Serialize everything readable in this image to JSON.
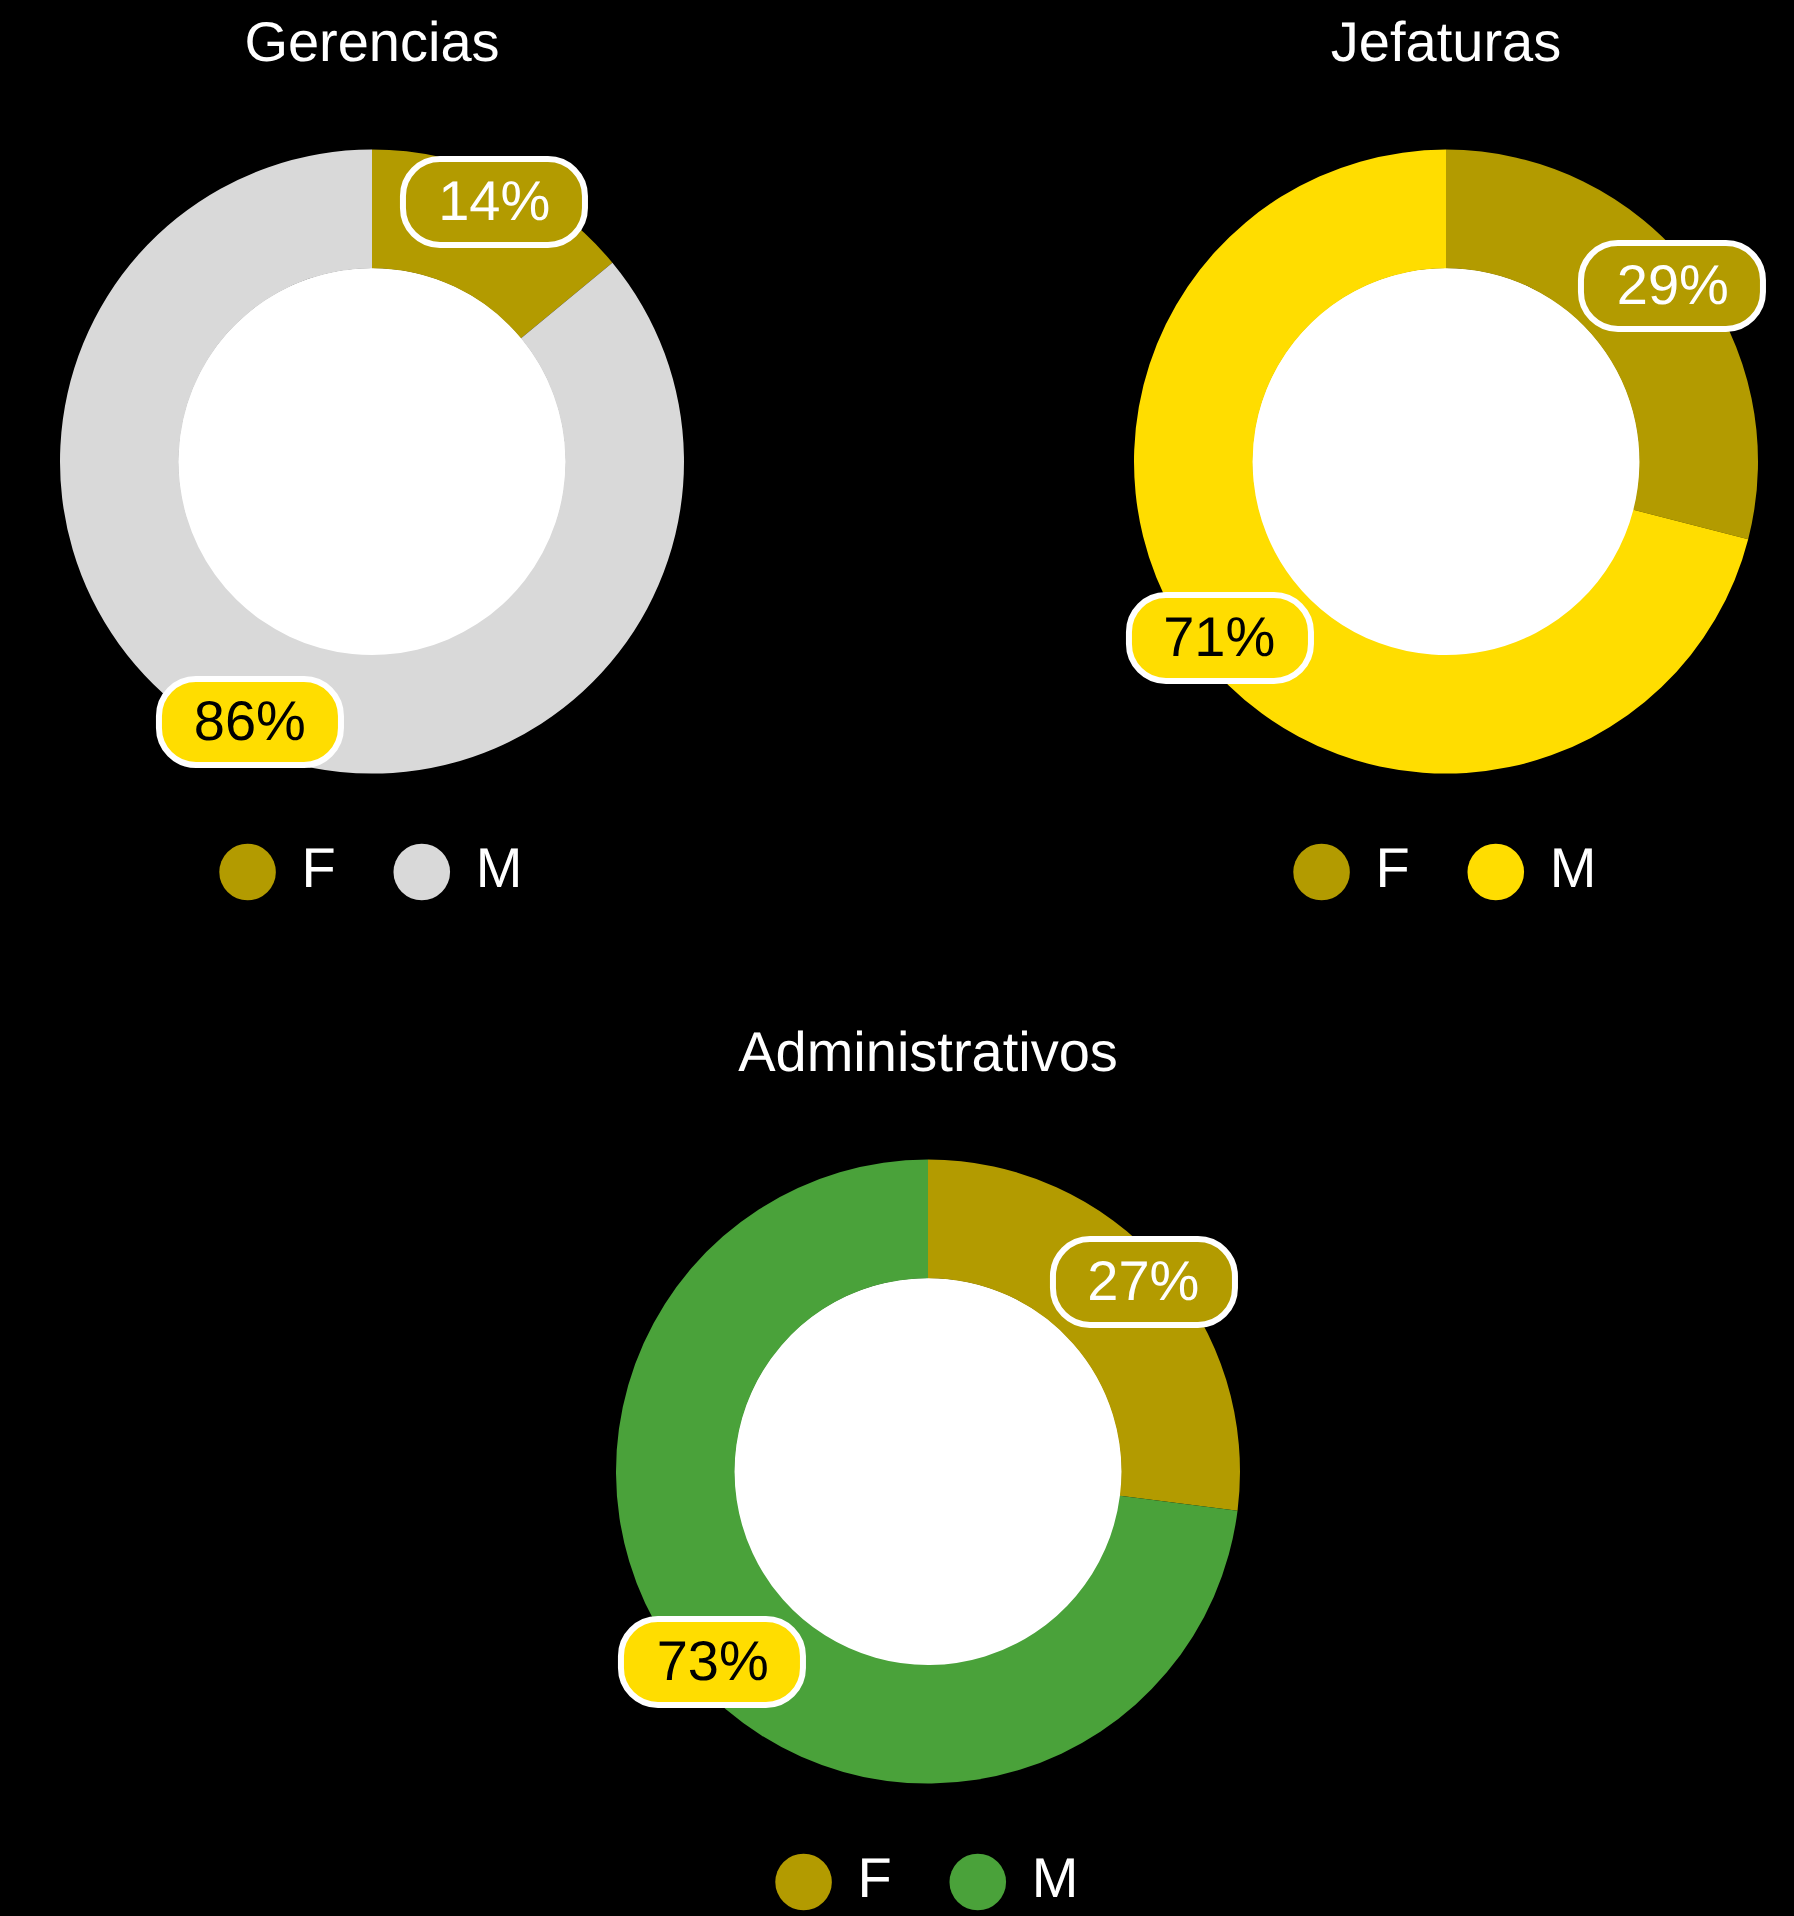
{
  "chart_data": [
    {
      "type": "donut",
      "title": "Gerencias",
      "categories": [
        "F",
        "M"
      ],
      "values": [
        14,
        86
      ],
      "colors": [
        "#b39b00",
        "#d9d9d9"
      ],
      "value_labels": [
        "14%",
        "86%"
      ],
      "legend": "bottom"
    },
    {
      "type": "donut",
      "title": "Jefaturas",
      "categories": [
        "F",
        "M"
      ],
      "values": [
        29,
        71
      ],
      "colors": [
        "#b39b00",
        "#ffdd00"
      ],
      "value_labels": [
        "29%",
        "71%"
      ],
      "legend": "bottom"
    },
    {
      "type": "donut",
      "title": "Administrativos",
      "categories": [
        "F",
        "M"
      ],
      "values": [
        27,
        73
      ],
      "colors": [
        "#b39b00",
        "#4aa23a"
      ],
      "value_labels": [
        "27%",
        "73%"
      ],
      "legend": "bottom"
    }
  ]
}
